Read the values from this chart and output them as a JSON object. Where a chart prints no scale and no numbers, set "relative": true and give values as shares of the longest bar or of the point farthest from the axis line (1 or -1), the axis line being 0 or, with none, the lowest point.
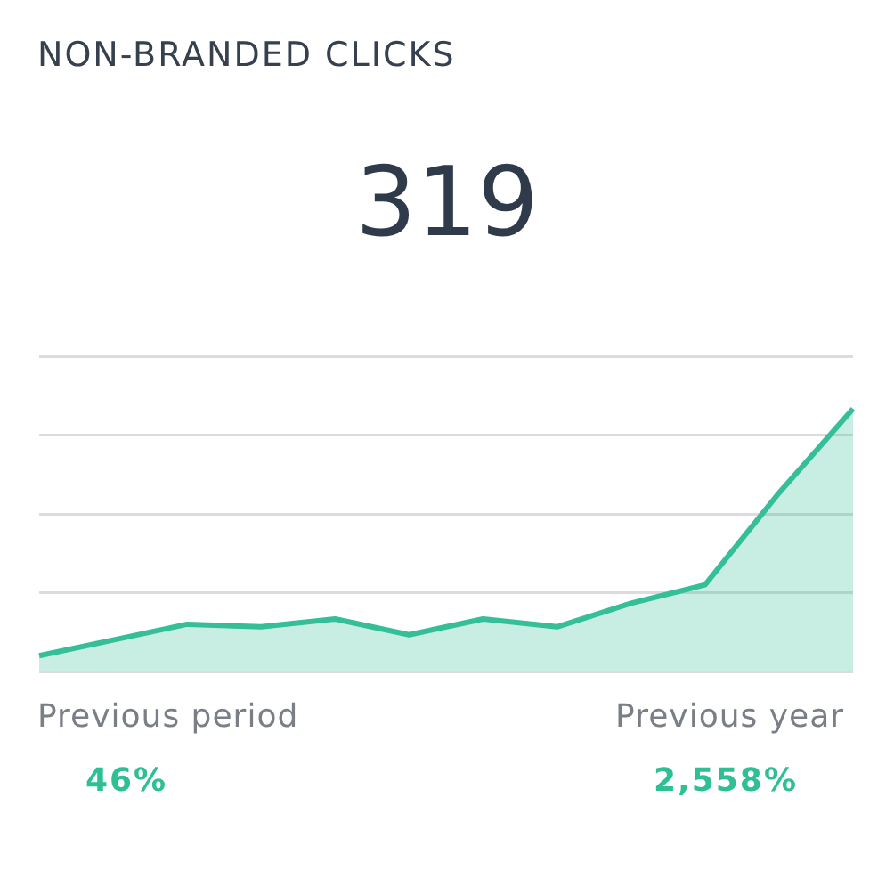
{
  "chart_data": {
    "type": "area",
    "title": "NON-BRANDED CLICKS",
    "relative": true,
    "grid": "y",
    "legend": false,
    "marker": "none",
    "line_style": "solid",
    "categories": [
      null,
      null,
      null,
      null,
      null,
      null,
      null,
      null,
      null,
      null,
      null,
      null
    ],
    "series": [
      {
        "color": "#35bf98",
        "values": [
          0.06,
          0.12,
          0.18,
          0.17,
          0.2,
          0.14,
          0.2,
          0.17,
          0.26,
          0.33,
          0.68,
          1
        ]
      }
    ],
    "annotations": [
      "319",
      "Previous period",
      "46%",
      "Previous year",
      "2,558%"
    ]
  }
}
